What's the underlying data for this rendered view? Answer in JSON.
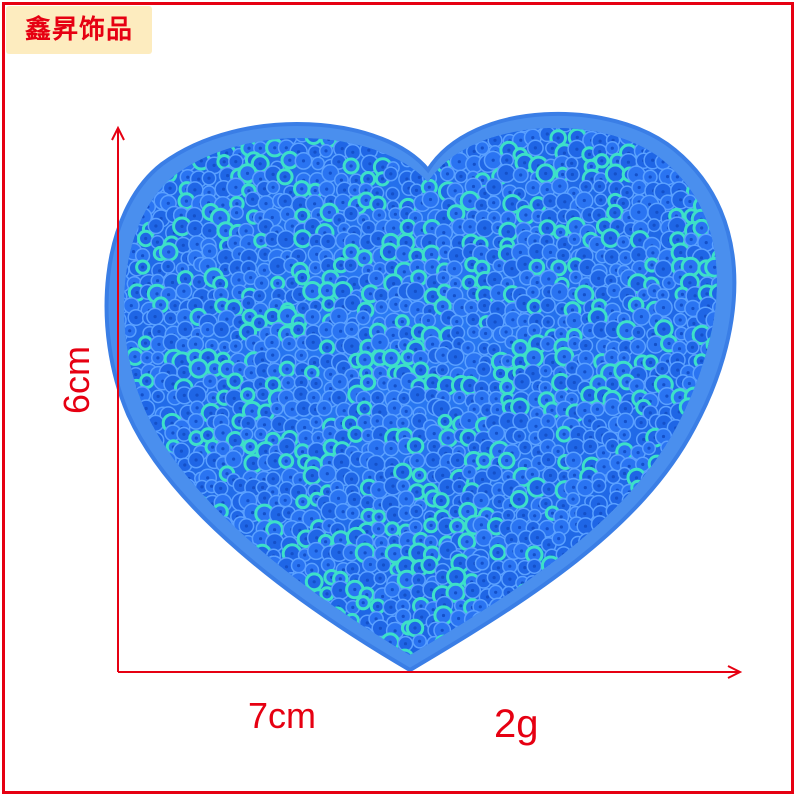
{
  "brand": {
    "name": "鑫昇饰品"
  },
  "product": {
    "shape": "heart",
    "material": "sequins",
    "color": "#1e6ff0"
  },
  "dimensions": {
    "height": "6cm",
    "width": "7cm",
    "weight": "2g"
  },
  "colors": {
    "accent": "#e60012",
    "brand_bg": "#fdecbf",
    "sequin_blue": "#1e6ff0",
    "sequin_cyan": "#3de0c8"
  }
}
